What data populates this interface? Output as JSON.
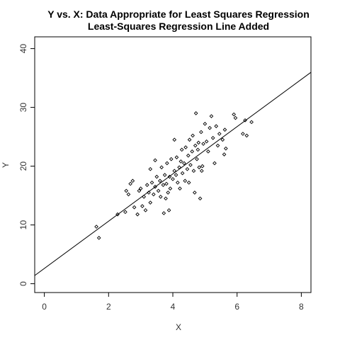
{
  "chart_data": {
    "type": "scatter",
    "title": "Y vs. X: Data Appropriate for Least Squares Regression",
    "subtitle": "Least-Squares Regression Line Added",
    "xlabel": "X",
    "ylabel": "Y",
    "xlim": [
      -0.3,
      8.3
    ],
    "ylim": [
      -1.5,
      42
    ],
    "xticks": [
      0,
      2,
      4,
      6,
      8
    ],
    "yticks": [
      0,
      10,
      20,
      30,
      40
    ],
    "grid": false,
    "legend": "none",
    "regression_line": {
      "intercept": 2.6,
      "slope": 4.02
    },
    "points": [
      [
        1.62,
        9.7
      ],
      [
        1.7,
        7.8
      ],
      [
        2.28,
        11.8
      ],
      [
        2.52,
        12.2
      ],
      [
        2.55,
        15.8
      ],
      [
        2.62,
        15.2
      ],
      [
        2.68,
        17.0
      ],
      [
        2.75,
        17.5
      ],
      [
        2.8,
        13.0
      ],
      [
        2.9,
        11.8
      ],
      [
        2.95,
        15.8
      ],
      [
        3.0,
        16.2
      ],
      [
        3.05,
        13.2
      ],
      [
        3.1,
        14.8
      ],
      [
        3.15,
        12.5
      ],
      [
        3.2,
        16.8
      ],
      [
        3.25,
        15.5
      ],
      [
        3.3,
        13.8
      ],
      [
        3.3,
        19.5
      ],
      [
        3.35,
        17.2
      ],
      [
        3.4,
        15.2
      ],
      [
        3.45,
        16.5
      ],
      [
        3.45,
        21.0
      ],
      [
        3.5,
        18.2
      ],
      [
        3.55,
        15.8
      ],
      [
        3.6,
        17.5
      ],
      [
        3.62,
        14.8
      ],
      [
        3.65,
        19.8
      ],
      [
        3.7,
        16.8
      ],
      [
        3.72,
        12.0
      ],
      [
        3.75,
        18.5
      ],
      [
        3.78,
        14.5
      ],
      [
        3.8,
        17.0
      ],
      [
        3.82,
        20.5
      ],
      [
        3.85,
        15.5
      ],
      [
        3.88,
        12.5
      ],
      [
        3.9,
        18.2
      ],
      [
        3.92,
        16.2
      ],
      [
        3.95,
        21.2
      ],
      [
        4.0,
        17.8
      ],
      [
        4.05,
        19.2
      ],
      [
        4.05,
        24.5
      ],
      [
        4.1,
        18.5
      ],
      [
        4.12,
        21.5
      ],
      [
        4.15,
        17.2
      ],
      [
        4.2,
        19.8
      ],
      [
        4.22,
        16.2
      ],
      [
        4.25,
        20.8
      ],
      [
        4.28,
        22.8
      ],
      [
        4.3,
        18.8
      ],
      [
        4.35,
        20.5
      ],
      [
        4.38,
        17.5
      ],
      [
        4.4,
        23.2
      ],
      [
        4.45,
        19.5
      ],
      [
        4.48,
        21.8
      ],
      [
        4.5,
        17.2
      ],
      [
        4.52,
        24.5
      ],
      [
        4.55,
        20.2
      ],
      [
        4.6,
        22.5
      ],
      [
        4.62,
        25.2
      ],
      [
        4.65,
        19.2
      ],
      [
        4.68,
        15.5
      ],
      [
        4.7,
        23.5
      ],
      [
        4.72,
        29.0
      ],
      [
        4.75,
        21.2
      ],
      [
        4.78,
        22.8
      ],
      [
        4.8,
        24.0
      ],
      [
        4.82,
        19.8
      ],
      [
        4.85,
        14.5
      ],
      [
        4.88,
        25.8
      ],
      [
        4.9,
        19.2
      ],
      [
        4.92,
        20.0
      ],
      [
        4.95,
        23.8
      ],
      [
        5.0,
        27.2
      ],
      [
        5.05,
        24.2
      ],
      [
        5.1,
        22.5
      ],
      [
        5.15,
        26.5
      ],
      [
        5.2,
        28.5
      ],
      [
        5.25,
        24.8
      ],
      [
        5.3,
        20.5
      ],
      [
        5.35,
        26.8
      ],
      [
        5.4,
        23.5
      ],
      [
        5.45,
        25.5
      ],
      [
        5.55,
        24.5
      ],
      [
        5.6,
        22.0
      ],
      [
        5.62,
        26.2
      ],
      [
        5.65,
        23.0
      ],
      [
        5.9,
        28.8
      ],
      [
        5.95,
        28.2
      ],
      [
        6.18,
        25.5
      ],
      [
        6.25,
        27.8
      ],
      [
        6.3,
        25.2
      ],
      [
        6.45,
        27.5
      ]
    ]
  }
}
